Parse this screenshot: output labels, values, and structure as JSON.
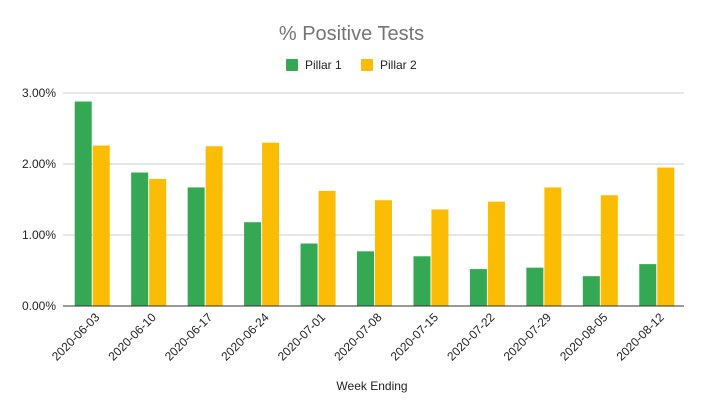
{
  "chart_data": {
    "type": "bar",
    "title": "% Positive Tests",
    "xlabel": "Week Ending",
    "ylabel": "",
    "categories": [
      "2020-06-03",
      "2020-06-10",
      "2020-06-17",
      "2020-06-24",
      "2020-07-01",
      "2020-07-08",
      "2020-07-15",
      "2020-07-22",
      "2020-07-29",
      "2020-08-05",
      "2020-08-12"
    ],
    "series": [
      {
        "name": "Pillar 1",
        "color": "#34a853",
        "values": [
          2.88,
          1.88,
          1.67,
          1.18,
          0.88,
          0.77,
          0.7,
          0.52,
          0.54,
          0.42,
          0.59
        ]
      },
      {
        "name": "Pillar 2",
        "color": "#fbbc04",
        "values": [
          2.26,
          1.79,
          2.25,
          2.3,
          1.62,
          1.49,
          1.36,
          1.47,
          1.67,
          1.56,
          1.95
        ]
      }
    ],
    "ylim": [
      0,
      3
    ],
    "yticks": [
      "0.00%",
      "1.00%",
      "2.00%",
      "3.00%"
    ],
    "grid": true,
    "legend_position": "top-center"
  }
}
